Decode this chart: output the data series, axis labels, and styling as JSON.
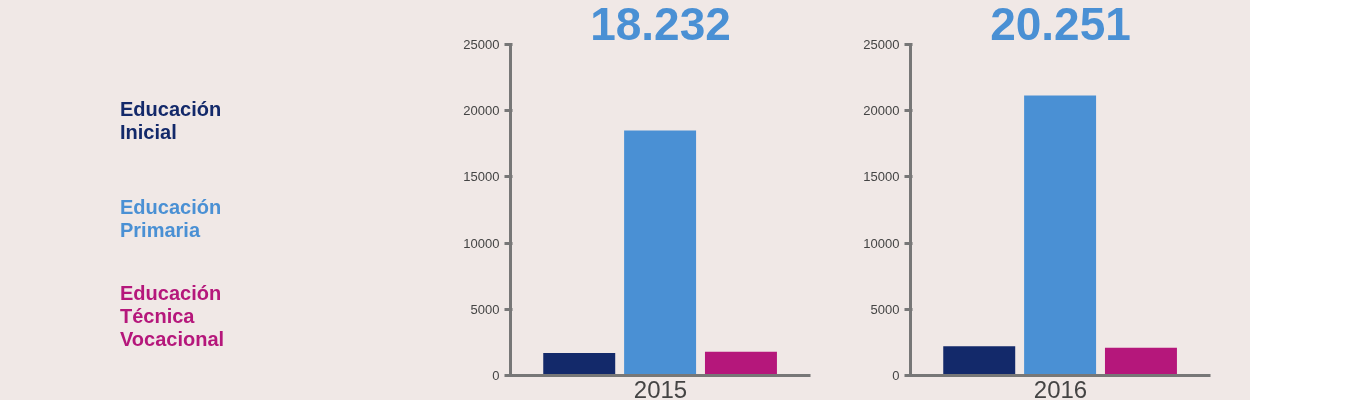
{
  "chart_data": [
    {
      "type": "bar",
      "title": "18.232",
      "xlabel": "2015",
      "categories": [
        null
      ],
      "ylim": [
        0,
        25000
      ],
      "yticks": [
        0,
        5000,
        10000,
        15000,
        20000,
        25000
      ],
      "legend": "left",
      "series": [
        {
          "name": "Educación Inicial",
          "color": "#13296a",
          "values": [
            1700
          ]
        },
        {
          "name": "Educación Primaria",
          "color": "#4a90d4",
          "values": [
            18500
          ]
        },
        {
          "name": "Educación Técnica Vocacional",
          "color": "#b5177b",
          "values": [
            1800
          ]
        }
      ]
    },
    {
      "type": "bar",
      "title": "20.251",
      "xlabel": "2016",
      "categories": [
        null
      ],
      "ylim": [
        0,
        25000
      ],
      "yticks": [
        0,
        5000,
        10000,
        15000,
        20000,
        25000
      ],
      "series": [
        {
          "color": "#13296a",
          "values": [
            2200
          ]
        },
        {
          "color": "#4a90d4",
          "values": [
            21150
          ]
        },
        {
          "color": "#b5177b",
          "values": [
            2100
          ]
        }
      ]
    }
  ]
}
